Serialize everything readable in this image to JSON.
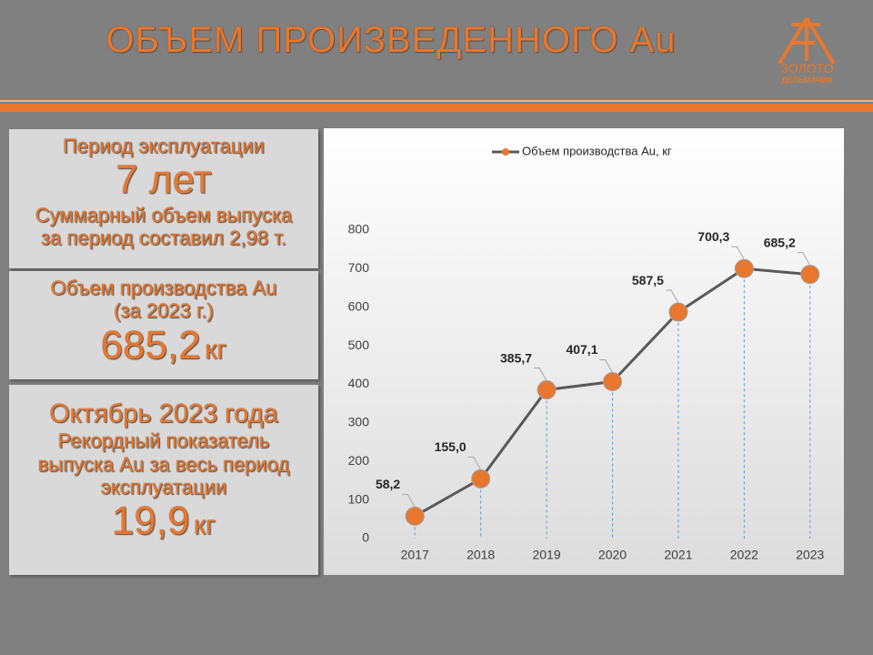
{
  "header": {
    "title": "ОБЪЕМ ПРОИЗВЕДЕННОГО Au",
    "logo": [
      "ЗОЛОТО",
      "ДЕЛЬМАЧИК"
    ]
  },
  "panels": [
    {
      "lines": [
        "Период эксплуатации",
        "7 лет",
        "Суммарный объем выпуска",
        "за период составил 2,98 т."
      ]
    },
    {
      "lines": [
        "Объем производства Au",
        "(за 2023 г.)"
      ],
      "value": "685,2",
      "unit": "кг"
    },
    {
      "lines": [
        "Октябрь 2023 года",
        "Рекордный показатель",
        "выпуска Au за весь период",
        "эксплуатации"
      ],
      "value": "19,9",
      "unit": "кг"
    }
  ],
  "chart_data": {
    "type": "line",
    "categories": [
      "2017",
      "2018",
      "2019",
      "2020",
      "2021",
      "2022",
      "2023"
    ],
    "series": [
      {
        "name": "Объем производства Au, кг",
        "color": "#595959",
        "marker_color": "#e8772e",
        "values": [
          58.2,
          155.0,
          385.7,
          407.1,
          587.5,
          700.3,
          685.2
        ],
        "value_labels": [
          "58,2",
          "155,0",
          "385,7",
          "407,1",
          "587,5",
          "700,3",
          "685,2"
        ]
      }
    ],
    "ylim": [
      0,
      800
    ],
    "yticks": [
      0,
      100,
      200,
      300,
      400,
      500,
      600,
      700,
      800
    ],
    "drop_lines": true,
    "legend": "top"
  }
}
